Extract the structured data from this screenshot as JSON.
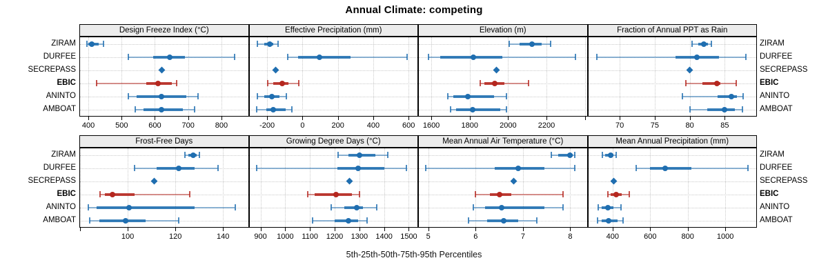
{
  "title": "Annual Climate: competing",
  "caption": "5th-25th-50th-75th-95th Percentiles",
  "colors": {
    "series_default": "#1f6eb0",
    "series_highlight": "#b5271f",
    "grid": "#c9c9c9",
    "strip_bg": "#ececec",
    "panel_border": "#000000",
    "background": "#ffffff"
  },
  "chart_data": {
    "type": "dotplot-percentiles",
    "title": "Annual Climate: competing",
    "xlabel": "5th-25th-50th-75th-95th Percentiles",
    "legend_position": "none",
    "grid": "dotted",
    "percentile_labels": [
      "5th",
      "25th",
      "50th",
      "75th",
      "95th"
    ],
    "sites": [
      "ZIRAM",
      "DURFEE",
      "SECREPASS",
      "EBIC",
      "ANINTO",
      "AMBOAT"
    ],
    "highlight_site": "EBIC",
    "single_value_site": "SECREPASS",
    "panels": [
      {
        "title": "Design Freeze Index (°C)",
        "row": 0,
        "col": 0,
        "xmin": 375,
        "xmax": 880,
        "ticks": [
          400,
          500,
          600,
          700,
          800
        ],
        "extra_ticks": [],
        "series": {
          "ZIRAM": [
            395,
            400,
            410,
            430,
            445
          ],
          "DURFEE": [
            520,
            595,
            645,
            690,
            840
          ],
          "SECREPASS": [
            620
          ],
          "EBIC": [
            425,
            575,
            610,
            650,
            665
          ],
          "ANINTO": [
            520,
            545,
            620,
            695,
            730
          ],
          "AMBOAT": [
            540,
            565,
            620,
            685,
            720
          ]
        }
      },
      {
        "title": "Effective Precipitation (mm)",
        "row": 0,
        "col": 1,
        "xmin": -300,
        "xmax": 650,
        "ticks": [
          -200,
          0,
          200,
          400,
          600
        ],
        "extra_ticks": [],
        "series": {
          "ZIRAM": [
            -255,
            -215,
            -185,
            -165,
            -140
          ],
          "DURFEE": [
            -85,
            -25,
            95,
            270,
            590
          ],
          "SECREPASS": [
            -150
          ],
          "EBIC": [
            -195,
            -165,
            -115,
            -80,
            -20
          ],
          "ANINTO": [
            -255,
            -215,
            -175,
            -130,
            -90
          ],
          "AMBOAT": [
            -260,
            -205,
            -165,
            -95,
            -60
          ]
        }
      },
      {
        "title": "Elevation (m)",
        "row": 0,
        "col": 2,
        "xmin": 1535,
        "xmax": 2410,
        "ticks": [
          1600,
          1800,
          2000,
          2200
        ],
        "extra_ticks": [
          2400
        ],
        "series": {
          "ZIRAM": [
            2005,
            2060,
            2125,
            2175,
            2220
          ],
          "DURFEE": [
            1585,
            1645,
            1820,
            1970,
            2350
          ],
          "SECREPASS": [
            1940
          ],
          "EBIC": [
            1855,
            1875,
            1930,
            1980,
            2105
          ],
          "ANINTO": [
            1685,
            1715,
            1790,
            1925,
            1990
          ],
          "AMBOAT": [
            1700,
            1730,
            1815,
            1960,
            1990
          ]
        }
      },
      {
        "title": "Fraction of Annual PPT as Rain",
        "row": 0,
        "col": 3,
        "xmin": 65.5,
        "xmax": 89.5,
        "ticks": [
          70,
          75,
          80,
          85
        ],
        "extra_ticks": [],
        "series": {
          "ZIRAM": [
            80.3,
            81.2,
            82,
            82.6,
            83.1
          ],
          "DURFEE": [
            66.7,
            78,
            81,
            84.2,
            88
          ],
          "SECREPASS": [
            80
          ],
          "EBIC": [
            79.4,
            81.8,
            83.9,
            84.4,
            86.6
          ],
          "ANINTO": [
            79,
            84,
            86,
            86.7,
            87.6
          ],
          "AMBOAT": [
            80,
            82.5,
            85,
            86.4,
            87.5
          ]
        }
      },
      {
        "title": "Frost-Free Days",
        "row": 1,
        "col": 0,
        "xmin": 80,
        "xmax": 150.5,
        "ticks": [
          100,
          120,
          140
        ],
        "extra_ticks": [
          80
        ],
        "series": {
          "ZIRAM": [
            124,
            125.5,
            127.5,
            129,
            130
          ],
          "DURFEE": [
            103,
            112,
            121.5,
            128,
            138
          ],
          "SECREPASS": [
            111
          ],
          "EBIC": [
            88.5,
            90.5,
            93.5,
            103,
            126
          ],
          "ANINTO": [
            83.5,
            87,
            100.5,
            128,
            145
          ],
          "AMBOAT": [
            84,
            88,
            99,
            107.5,
            121.5
          ]
        }
      },
      {
        "title": "Growing Degree Days (°C)",
        "row": 1,
        "col": 1,
        "xmin": 855,
        "xmax": 1535,
        "ticks": [
          900,
          1000,
          1100,
          1200,
          1300,
          1400,
          1500
        ],
        "extra_ticks": [],
        "series": {
          "ZIRAM": [
            1215,
            1255,
            1300,
            1365,
            1415
          ],
          "DURFEE": [
            885,
            1210,
            1295,
            1400,
            1490
          ],
          "SECREPASS": [
            1260
          ],
          "EBIC": [
            1090,
            1120,
            1205,
            1270,
            1300
          ],
          "ANINTO": [
            1185,
            1240,
            1290,
            1315,
            1370
          ],
          "AMBOAT": [
            1110,
            1200,
            1255,
            1295,
            1330
          ]
        }
      },
      {
        "title": "Mean Annual Air Temperature (°C)",
        "row": 1,
        "col": 2,
        "xmin": 4.8,
        "xmax": 8.35,
        "ticks": [
          5,
          6,
          7,
          8
        ],
        "extra_ticks": [],
        "series": {
          "ZIRAM": [
            7.6,
            7.75,
            8.0,
            8.05,
            8.1
          ],
          "DURFEE": [
            4.95,
            6.4,
            6.9,
            7.45,
            8.1
          ],
          "SECREPASS": [
            6.8
          ],
          "EBIC": [
            6.0,
            6.3,
            6.5,
            6.75,
            7.85
          ],
          "ANINTO": [
            5.95,
            6.2,
            6.55,
            7.45,
            7.85
          ],
          "AMBOAT": [
            5.85,
            6.25,
            6.6,
            6.9,
            7.3
          ]
        }
      },
      {
        "title": "Mean Annual Precipitation (mm)",
        "row": 1,
        "col": 3,
        "xmin": 270,
        "xmax": 1165,
        "ticks": [
          400,
          600,
          800,
          1000
        ],
        "extra_ticks": [],
        "series": {
          "ZIRAM": [
            345,
            360,
            390,
            405,
            420
          ],
          "DURFEE": [
            525,
            600,
            680,
            820,
            1120
          ],
          "SECREPASS": [
            405
          ],
          "EBIC": [
            375,
            390,
            420,
            450,
            490
          ],
          "ANINTO": [
            325,
            340,
            375,
            405,
            445
          ],
          "AMBOAT": [
            320,
            340,
            380,
            425,
            455
          ]
        }
      }
    ]
  }
}
